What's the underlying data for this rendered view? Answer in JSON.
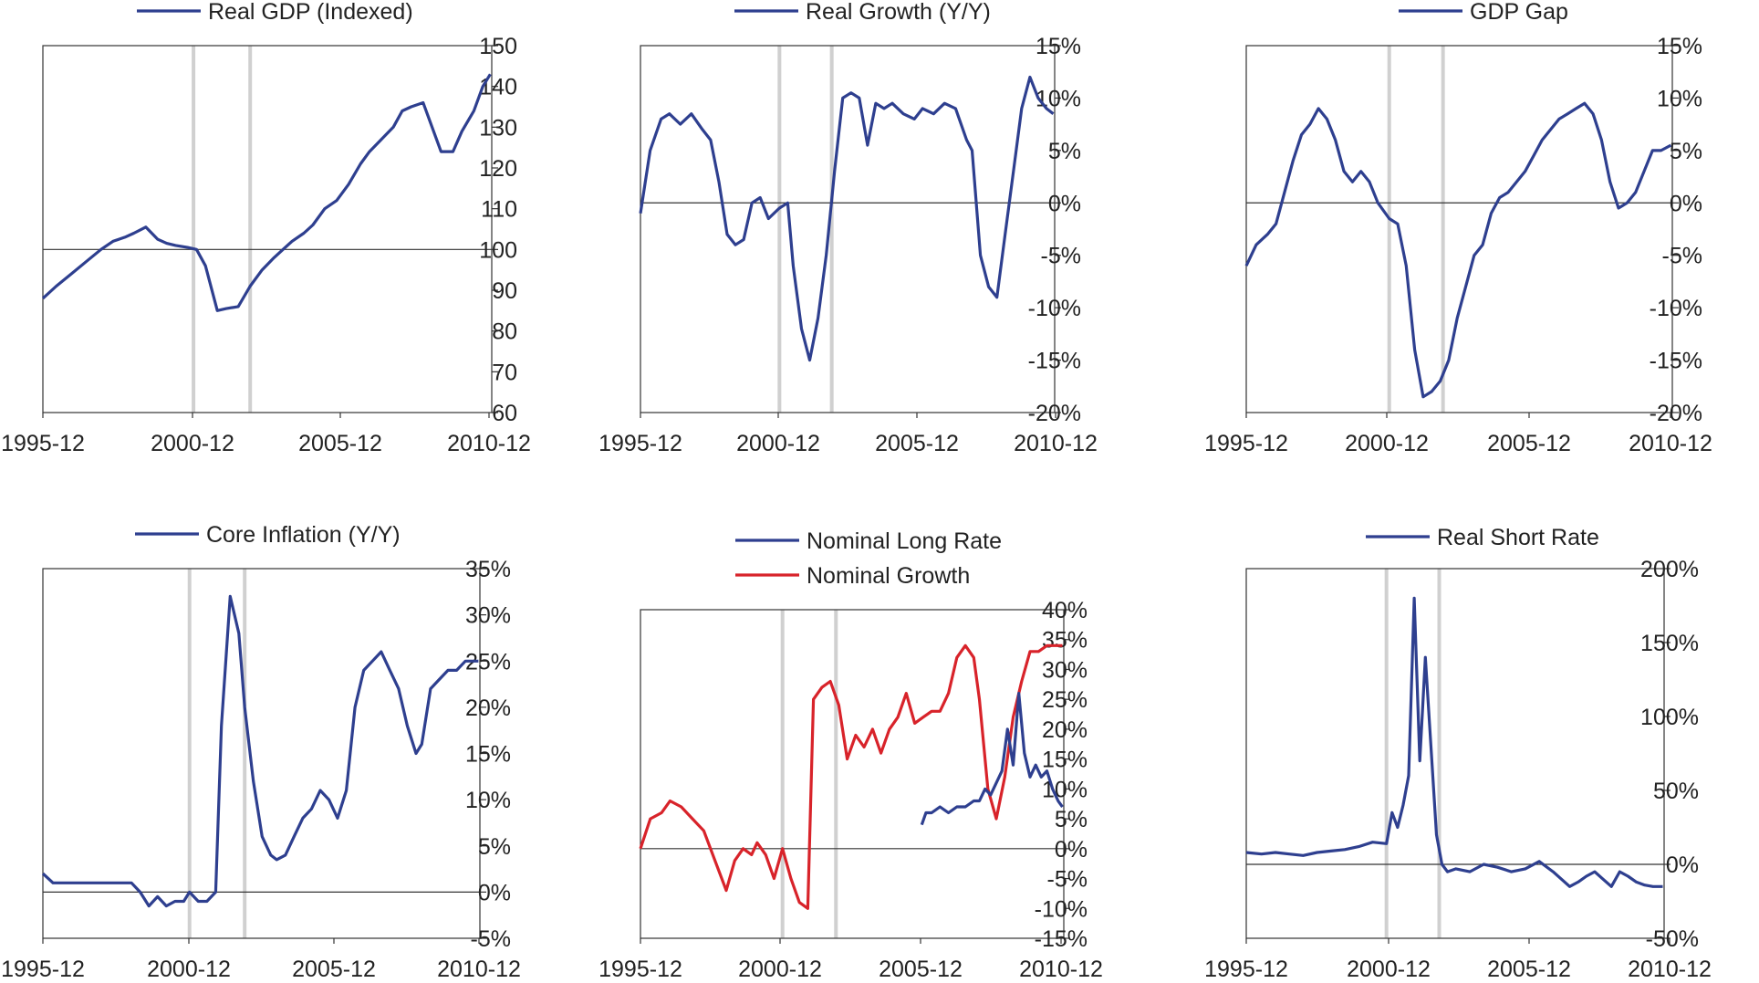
{
  "chart_data": [
    {
      "type": "line",
      "legend": [
        {
          "label": "Real GDP (Indexed)",
          "color": "#2e3f8f"
        }
      ],
      "x_ticks": [
        "1995-12",
        "2000-12",
        "2005-12",
        "2010-12"
      ],
      "y_ticks": [
        "150",
        "140",
        "130",
        "120",
        "110",
        "100",
        "90",
        "80",
        "70",
        "60"
      ],
      "ylim": [
        60,
        150
      ],
      "xlim": [
        1995.95,
        2011.0
      ],
      "baseline": 100,
      "recessions": [
        2001.0,
        2002.9
      ],
      "series": [
        {
          "color": "#2e3f8f",
          "x": [
            1995.95,
            1996.4,
            1996.9,
            1997.4,
            1997.9,
            1998.3,
            1998.7,
            1999.0,
            1999.4,
            1999.8,
            2000.1,
            2000.4,
            2000.8,
            2001.1,
            2001.4,
            2001.8,
            2002.1,
            2002.5,
            2002.9,
            2003.3,
            2003.7,
            2004.0,
            2004.3,
            2004.7,
            2005.0,
            2005.4,
            2005.8,
            2006.2,
            2006.6,
            2006.9,
            2007.3,
            2007.7,
            2008.0,
            2008.3,
            2008.7,
            2009.0,
            2009.3,
            2009.7,
            2010.0,
            2010.4,
            2010.7,
            2010.95
          ],
          "y": [
            88,
            91,
            94,
            97,
            100,
            102,
            103,
            104,
            105.5,
            102.5,
            101.5,
            101,
            100.5,
            100,
            96,
            85,
            85.5,
            86,
            91,
            95,
            98,
            100,
            102,
            104,
            106,
            110,
            112,
            116,
            121,
            124,
            127,
            130,
            134,
            135,
            136,
            130,
            124,
            124,
            129,
            134,
            140,
            143
          ]
        }
      ]
    },
    {
      "type": "line",
      "legend": [
        {
          "label": "Real Growth (Y/Y)",
          "color": "#2e3f8f"
        }
      ],
      "x_ticks": [
        "1995-12",
        "2000-12",
        "2005-12",
        "2010-12"
      ],
      "y_ticks": [
        "15%",
        "10%",
        "5%",
        "0%",
        "-5%",
        "-10%",
        "-15%",
        "-20%"
      ],
      "ylim": [
        -20,
        15
      ],
      "xlim": [
        1995.95,
        2011.0
      ],
      "baseline": 0,
      "recessions": [
        2001.0,
        2002.9
      ],
      "series": [
        {
          "color": "#2e3f8f",
          "x": [
            1995.95,
            1996.3,
            1996.7,
            1997.0,
            1997.4,
            1997.8,
            1998.2,
            1998.5,
            1998.8,
            1999.1,
            1999.4,
            1999.7,
            2000.0,
            2000.3,
            2000.6,
            2001.0,
            2001.3,
            2001.5,
            2001.8,
            2002.1,
            2002.4,
            2002.7,
            2003.0,
            2003.3,
            2003.6,
            2003.9,
            2004.2,
            2004.5,
            2004.8,
            2005.1,
            2005.5,
            2005.9,
            2006.2,
            2006.6,
            2007.0,
            2007.4,
            2007.8,
            2008.0,
            2008.3,
            2008.6,
            2008.9,
            2009.2,
            2009.5,
            2009.8,
            2010.1,
            2010.4,
            2010.7,
            2010.95
          ],
          "y": [
            -1,
            5,
            8,
            8.5,
            7.5,
            8.5,
            7,
            6,
            2,
            -3,
            -4,
            -3.5,
            0,
            0.5,
            -1.5,
            -0.5,
            0,
            -6,
            -12,
            -15,
            -11,
            -5,
            3,
            10,
            10.5,
            10,
            5.5,
            9.5,
            9,
            9.5,
            8.5,
            8,
            9,
            8.5,
            9.5,
            9,
            6,
            5,
            -5,
            -8,
            -9,
            -3,
            3,
            9,
            12,
            10,
            9,
            8.5
          ]
        }
      ]
    },
    {
      "type": "line",
      "legend": [
        {
          "label": "GDP Gap",
          "color": "#2e3f8f"
        }
      ],
      "x_ticks": [
        "1995-12",
        "2000-12",
        "2005-12",
        "2010-12"
      ],
      "y_ticks": [
        "15%",
        "10%",
        "5%",
        "0%",
        "-5%",
        "-10%",
        "-15%",
        "-20%"
      ],
      "ylim": [
        -20,
        15
      ],
      "xlim": [
        1995.95,
        2011.0
      ],
      "baseline": 0,
      "recessions": [
        2001.0,
        2002.9
      ],
      "series": [
        {
          "color": "#2e3f8f",
          "x": [
            1995.95,
            1996.3,
            1996.7,
            1997.0,
            1997.3,
            1997.6,
            1997.9,
            1998.2,
            1998.5,
            1998.8,
            1999.1,
            1999.4,
            1999.7,
            2000.0,
            2000.3,
            2000.6,
            2001.0,
            2001.3,
            2001.6,
            2001.9,
            2002.2,
            2002.5,
            2002.8,
            2003.1,
            2003.4,
            2003.7,
            2004.0,
            2004.3,
            2004.6,
            2004.9,
            2005.2,
            2005.5,
            2005.8,
            2006.1,
            2006.4,
            2006.7,
            2007.0,
            2007.3,
            2007.6,
            2007.9,
            2008.2,
            2008.5,
            2008.8,
            2009.1,
            2009.4,
            2009.7,
            2010.0,
            2010.3,
            2010.6,
            2010.95
          ],
          "y": [
            -6,
            -4,
            -3,
            -2,
            1,
            4,
            6.5,
            7.5,
            9,
            8,
            6,
            3,
            2,
            3,
            2,
            0,
            -1.5,
            -2,
            -6,
            -14,
            -18.5,
            -18,
            -17,
            -15,
            -11,
            -8,
            -5,
            -4,
            -1,
            0.5,
            1,
            2,
            3,
            4.5,
            6,
            7,
            8,
            8.5,
            9,
            9.5,
            8.5,
            6,
            2,
            -0.5,
            0,
            1,
            3,
            5,
            5,
            5.5
          ]
        }
      ]
    },
    {
      "type": "line",
      "legend": [
        {
          "label": "Core Inflation (Y/Y)",
          "color": "#2e3f8f"
        }
      ],
      "x_ticks": [
        "1995-12",
        "2000-12",
        "2005-12",
        "2010-12"
      ],
      "y_ticks": [
        "35%",
        "30%",
        "25%",
        "20%",
        "15%",
        "10%",
        "5%",
        "0%",
        "-5%"
      ],
      "ylim": [
        -5,
        35
      ],
      "xlim": [
        1995.95,
        2011.0
      ],
      "baseline": 0,
      "recessions": [
        2001.0,
        2002.9
      ],
      "series": [
        {
          "color": "#2e3f8f",
          "x": [
            1995.95,
            1996.3,
            1996.7,
            1997.0,
            1997.4,
            1997.8,
            1998.2,
            1998.6,
            1999.0,
            1999.3,
            1999.6,
            1999.9,
            2000.2,
            2000.5,
            2000.8,
            2001.0,
            2001.3,
            2001.6,
            2001.9,
            2002.1,
            2002.4,
            2002.7,
            2002.9,
            2003.2,
            2003.5,
            2003.8,
            2004.0,
            2004.3,
            2004.6,
            2004.9,
            2005.2,
            2005.5,
            2005.8,
            2006.1,
            2006.4,
            2006.7,
            2007.0,
            2007.3,
            2007.6,
            2007.9,
            2008.2,
            2008.5,
            2008.8,
            2009.0,
            2009.3,
            2009.6,
            2009.9,
            2010.2,
            2010.5,
            2010.8,
            2010.95
          ],
          "y": [
            2,
            1,
            1,
            1,
            1,
            1,
            1,
            1,
            1,
            0,
            -1.5,
            -0.5,
            -1.5,
            -1,
            -1,
            0,
            -1,
            -1,
            0,
            18,
            32,
            28,
            20,
            12,
            6,
            4,
            3.5,
            4,
            6,
            8,
            9,
            11,
            10,
            8,
            11,
            20,
            24,
            25,
            26,
            24,
            22,
            18,
            15,
            16,
            22,
            23,
            24,
            24,
            25,
            25,
            25
          ]
        }
      ]
    },
    {
      "type": "line",
      "legend": [
        {
          "label": "Nominal Long Rate",
          "color": "#2e3f8f"
        },
        {
          "label": "Nominal Growth",
          "color": "#d8232a"
        }
      ],
      "x_ticks": [
        "1995-12",
        "2000-12",
        "2005-12",
        "2010-12"
      ],
      "y_ticks": [
        "40%",
        "35%",
        "30%",
        "25%",
        "20%",
        "15%",
        "10%",
        "5%",
        "0%",
        "-5%",
        "-10%",
        "-15%"
      ],
      "ylim": [
        -15,
        40
      ],
      "xlim": [
        1995.95,
        2011.0
      ],
      "baseline": 0,
      "recessions": [
        2001.0,
        2002.9
      ],
      "series": [
        {
          "color": "#d8232a",
          "x": [
            1995.95,
            1996.3,
            1996.7,
            1997.0,
            1997.4,
            1997.8,
            1998.2,
            1998.6,
            1999.0,
            1999.3,
            1999.6,
            1999.9,
            2000.1,
            2000.4,
            2000.7,
            2001.0,
            2001.3,
            2001.6,
            2001.9,
            2002.1,
            2002.4,
            2002.7,
            2003.0,
            2003.3,
            2003.6,
            2003.9,
            2004.2,
            2004.5,
            2004.8,
            2005.1,
            2005.4,
            2005.7,
            2006.0,
            2006.3,
            2006.6,
            2006.9,
            2007.2,
            2007.5,
            2007.8,
            2008.0,
            2008.3,
            2008.6,
            2008.9,
            2009.2,
            2009.5,
            2009.8,
            2010.1,
            2010.4,
            2010.7,
            2010.95
          ],
          "y": [
            0,
            5,
            6,
            8,
            7,
            5,
            3,
            -2,
            -7,
            -2,
            0,
            -1,
            1,
            -1,
            -5,
            0,
            -5,
            -9,
            -10,
            25,
            27,
            28,
            24,
            15,
            19,
            17,
            20,
            16,
            20,
            22,
            26,
            21,
            22,
            23,
            23,
            26,
            32,
            34,
            32,
            25,
            10,
            5,
            12,
            22,
            28,
            33,
            33,
            34,
            34,
            34
          ]
        },
        {
          "color": "#2e3f8f",
          "x": [
            2005.95,
            2006.1,
            2006.3,
            2006.6,
            2006.9,
            2007.2,
            2007.5,
            2007.8,
            2008.0,
            2008.2,
            2008.4,
            2008.6,
            2008.8,
            2009.0,
            2009.2,
            2009.4,
            2009.6,
            2009.8,
            2010.0,
            2010.2,
            2010.4,
            2010.6,
            2010.8,
            2010.95
          ],
          "y": [
            4,
            6,
            6,
            7,
            6,
            7,
            7,
            8,
            8,
            10,
            9,
            11,
            13,
            20,
            14,
            26,
            16,
            12,
            14,
            12,
            13,
            10,
            8,
            7
          ]
        }
      ]
    },
    {
      "type": "line",
      "legend": [
        {
          "label": "Real Short Rate",
          "color": "#2e3f8f"
        }
      ],
      "x_ticks": [
        "1995-12",
        "2000-12",
        "2005-12",
        "2010-12"
      ],
      "y_ticks": [
        "200%",
        "150%",
        "100%",
        "50%",
        "0%",
        "-50%"
      ],
      "ylim": [
        -50,
        200
      ],
      "xlim": [
        1995.95,
        2011.0
      ],
      "baseline": 0,
      "recessions": [
        2001.0,
        2002.9
      ],
      "series": [
        {
          "color": "#2e3f8f",
          "x": [
            1995.95,
            1996.5,
            1997.0,
            1997.5,
            1998.0,
            1998.5,
            1999.0,
            1999.5,
            2000.0,
            2000.5,
            2001.0,
            2001.2,
            2001.4,
            2001.6,
            2001.8,
            2002.0,
            2002.2,
            2002.4,
            2002.6,
            2002.8,
            2003.0,
            2003.2,
            2003.5,
            2004.0,
            2004.5,
            2005.0,
            2005.5,
            2006.0,
            2006.5,
            2007.0,
            2007.3,
            2007.6,
            2007.9,
            2008.2,
            2008.5,
            2008.8,
            2009.1,
            2009.4,
            2009.7,
            2010.0,
            2010.3,
            2010.6,
            2010.95
          ],
          "y": [
            8,
            7,
            8,
            7,
            6,
            8,
            9,
            10,
            12,
            15,
            14,
            35,
            25,
            40,
            60,
            180,
            70,
            140,
            80,
            20,
            0,
            -5,
            -3,
            -5,
            0,
            -2,
            -5,
            -3,
            2,
            -5,
            -10,
            -15,
            -12,
            -8,
            -5,
            -10,
            -15,
            -5,
            -8,
            -12,
            -14,
            -15,
            -15
          ]
        }
      ]
    }
  ]
}
